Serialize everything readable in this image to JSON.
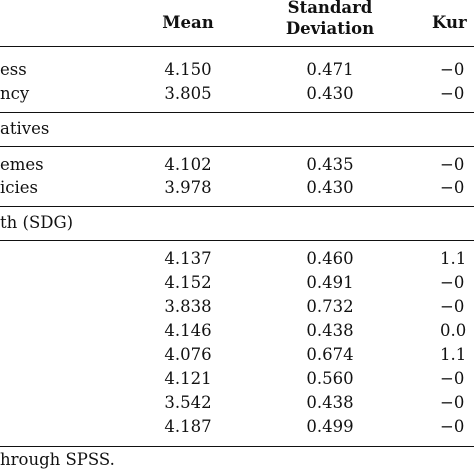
{
  "header": {
    "mean": "Mean",
    "sd_line1": "Standard",
    "sd_line2": "Deviation",
    "kurtosis": "Kur"
  },
  "groups": [
    {
      "rows": [
        {
          "label": "ess",
          "mean": "4.150",
          "sd": "0.471",
          "kurt": "−0"
        },
        {
          "label": "ncy",
          "mean": "3.805",
          "sd": "0.430",
          "kurt": "−0"
        }
      ]
    },
    {
      "title": "atives",
      "rows": [
        {
          "label": "emes",
          "mean": "4.102",
          "sd": "0.435",
          "kurt": "−0"
        },
        {
          "label": "icies",
          "mean": "3.978",
          "sd": "0.430",
          "kurt": "−0"
        }
      ]
    },
    {
      "title": "th (SDG)",
      "rows": [
        {
          "label": "",
          "mean": "4.137",
          "sd": "0.460",
          "kurt": "1.1"
        },
        {
          "label": "",
          "mean": "4.152",
          "sd": "0.491",
          "kurt": "−0"
        },
        {
          "label": "",
          "mean": "3.838",
          "sd": "0.732",
          "kurt": "−0"
        },
        {
          "label": "",
          "mean": "4.146",
          "sd": "0.438",
          "kurt": "0.0"
        },
        {
          "label": "",
          "mean": "4.076",
          "sd": "0.674",
          "kurt": "1.1"
        },
        {
          "label": "",
          "mean": "4.121",
          "sd": "0.560",
          "kurt": "−0"
        },
        {
          "label": "",
          "mean": "3.542",
          "sd": "0.438",
          "kurt": "−0"
        },
        {
          "label": "",
          "mean": "4.187",
          "sd": "0.499",
          "kurt": "−0"
        }
      ]
    }
  ],
  "note": "hrough SPSS."
}
